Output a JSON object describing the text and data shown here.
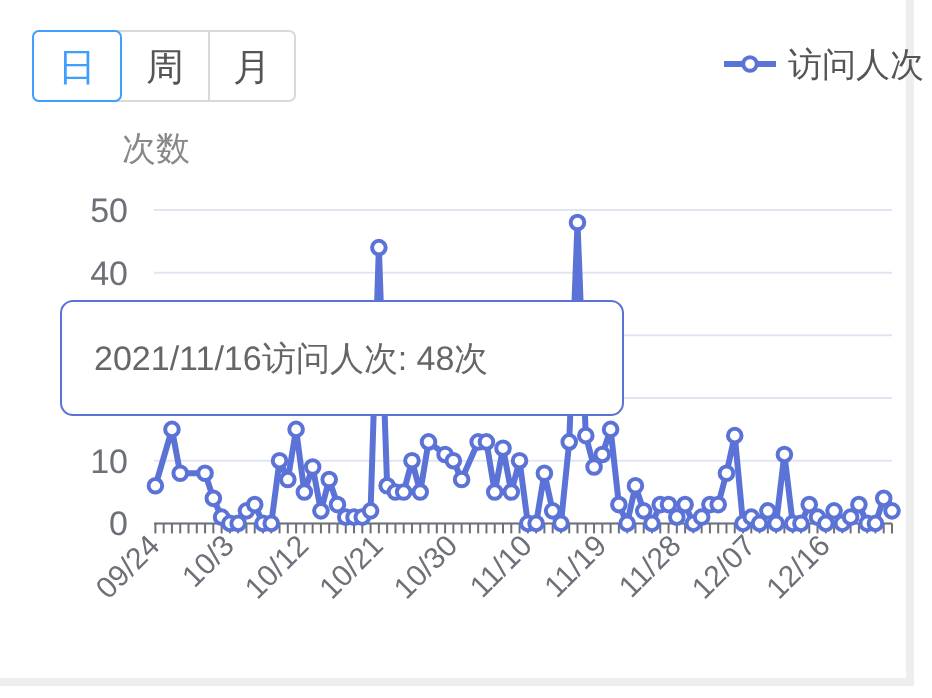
{
  "chart_data": {
    "type": "line",
    "ylabel": "次数",
    "categories": [
      "09/24",
      null,
      null,
      null,
      null,
      null,
      null,
      null,
      null,
      "10/3",
      null,
      null,
      null,
      null,
      null,
      null,
      null,
      null,
      "10/12",
      null,
      null,
      null,
      null,
      null,
      null,
      null,
      null,
      "10/21",
      null,
      null,
      null,
      null,
      null,
      null,
      null,
      null,
      "10/30",
      null,
      null,
      null,
      null,
      null,
      null,
      null,
      null,
      "11/10",
      null,
      null,
      null,
      null,
      null,
      null,
      null,
      null,
      "11/19",
      null,
      null,
      null,
      null,
      null,
      null,
      null,
      null,
      "11/28",
      null,
      null,
      null,
      null,
      null,
      null,
      null,
      null,
      "12/07",
      null,
      null,
      null,
      null,
      null,
      null,
      null,
      null,
      "12/16",
      null,
      null,
      null,
      null,
      null,
      null,
      null,
      null
    ],
    "series": [
      {
        "name": "访问人次",
        "color": "#5b73d6",
        "values": [
          6,
          null,
          15,
          8,
          null,
          null,
          8,
          4,
          1,
          0,
          0,
          2,
          3,
          0,
          0,
          10,
          7,
          15,
          5,
          9,
          2,
          7,
          3,
          1,
          1,
          1,
          2,
          44,
          6,
          5,
          5,
          10,
          5,
          13,
          null,
          11,
          10,
          7,
          null,
          13,
          13,
          5,
          12,
          5,
          10,
          0,
          0,
          8,
          2,
          0,
          13,
          48,
          14,
          9,
          11,
          15,
          3,
          0,
          6,
          2,
          0,
          3,
          3,
          1,
          3,
          0,
          1,
          3,
          3,
          8,
          14,
          0,
          1,
          0,
          2,
          0,
          11,
          0,
          0,
          3,
          1,
          0,
          2,
          0,
          1,
          3,
          0,
          0,
          4,
          2
        ]
      }
    ],
    "ylim": [
      0,
      50
    ],
    "yticks": [
      0,
      10,
      {
        "value": 20,
        "label": null
      },
      {
        "value": 30,
        "label": null
      },
      40,
      50
    ],
    "grid": "y",
    "legend": "top right",
    "marker": "circle",
    "line_style": "solid",
    "annotations": [
      "日",
      "周",
      "月",
      "2021/11/16访问人次: 48次"
    ]
  }
}
